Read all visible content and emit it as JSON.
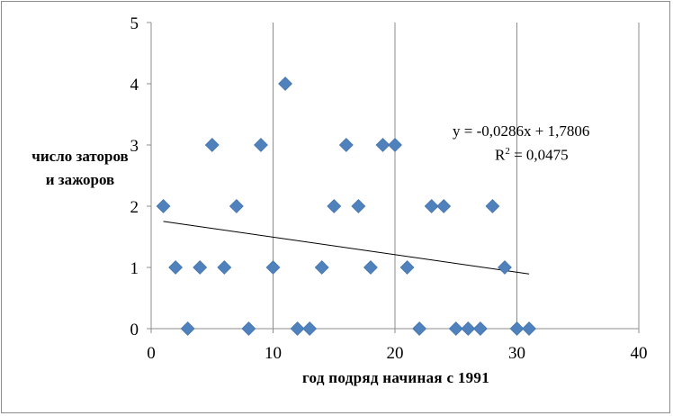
{
  "chart_data": {
    "type": "scatter",
    "xlabel": "год подряд начиная с 1991",
    "ylabel": "число заторов и зажоров",
    "xlim": [
      0,
      40
    ],
    "ylim": [
      0,
      5
    ],
    "x_ticks": [
      "0",
      "10",
      "20",
      "30",
      "40"
    ],
    "y_ticks": [
      "0",
      "1",
      "2",
      "3",
      "4",
      "5"
    ],
    "grid": "vertical",
    "series": [
      {
        "x": [
          1,
          2,
          3,
          4,
          5,
          6,
          7,
          8,
          9,
          10,
          11,
          12,
          13,
          14,
          15,
          16,
          17,
          18,
          19,
          20,
          21,
          22,
          23,
          24,
          25,
          26,
          27,
          28,
          29,
          30,
          31
        ],
        "y": [
          2,
          1,
          0,
          1,
          3,
          1,
          2,
          0,
          3,
          1,
          4,
          0,
          0,
          1,
          2,
          3,
          2,
          1,
          3,
          3,
          1,
          0,
          2,
          2,
          0,
          0,
          0,
          2,
          1,
          0,
          0
        ]
      }
    ],
    "trendline": {
      "type": "linear",
      "slope": -0.0286,
      "intercept": 1.7806,
      "x_range": [
        1,
        31
      ],
      "equation": "y = -0,0286x + 1,7806",
      "r2_label": "R",
      "r2_value": "= 0,0475"
    },
    "colors": {
      "marker": "#4f81bd",
      "trendline": "#000000",
      "grid": "#8c8c8c"
    }
  }
}
